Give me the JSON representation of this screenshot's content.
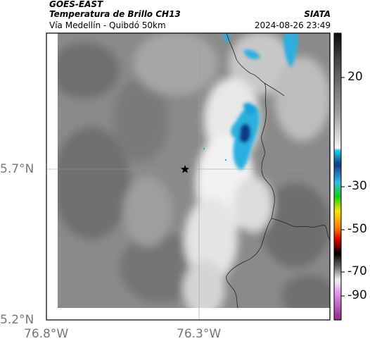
{
  "header": {
    "source": "GOES-EAST",
    "product": "Temperatura de Brillo CH13",
    "brand": "SIATA",
    "region": "Vía Medellín - Quibdó 50km",
    "datetime": "2024-08-26 23:49"
  },
  "map": {
    "lat_ticks": [
      "5.7°N",
      "5.2°N"
    ],
    "lon_ticks": [
      "76.8°W",
      "76.3°W"
    ],
    "marker": "star-marker"
  },
  "colorbar": {
    "labels": [
      "20",
      "-30",
      "-50",
      "-70",
      "-90"
    ],
    "colors": {
      "warm": "#7a7a7a",
      "cold_cyan": "#1fa9d8",
      "deep_blue": "#0a3a8a",
      "green": "#2bd12b",
      "yellow": "#f2e600",
      "red": "#d10000",
      "black": "#000000",
      "magenta": "#b23ab2"
    }
  }
}
